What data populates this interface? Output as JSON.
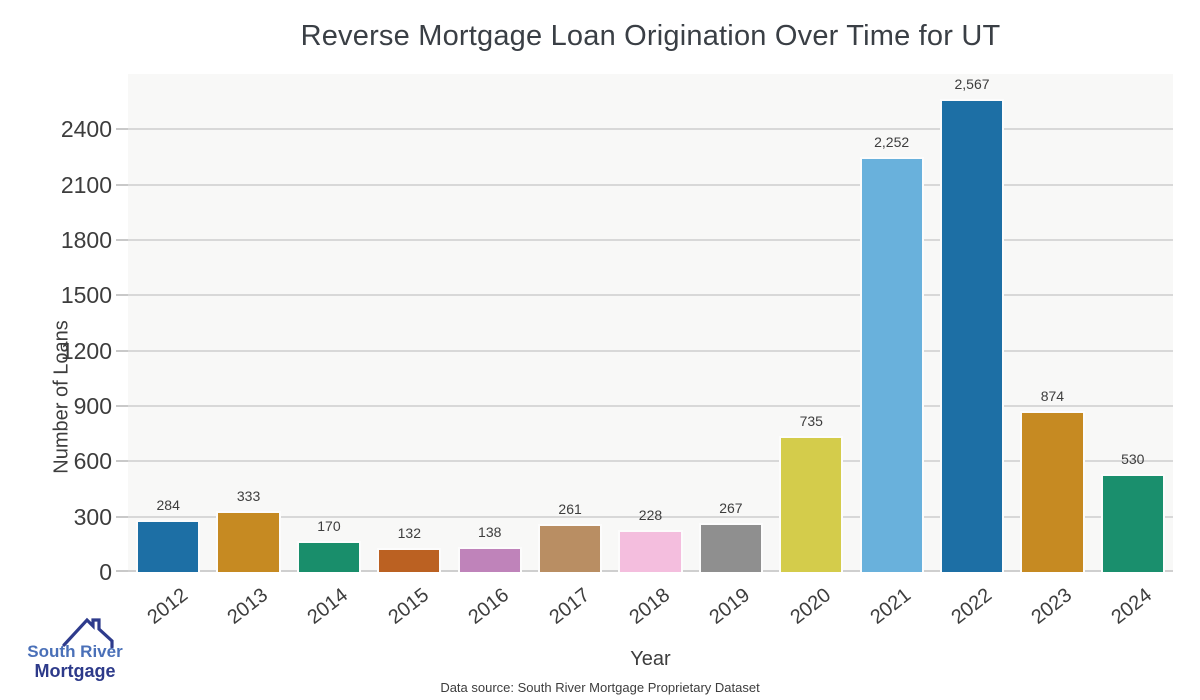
{
  "title": "Reverse Mortgage Loan Origination Over Time for UT",
  "footer": {
    "source": "Data source: South River Mortgage Proprietary Dataset"
  },
  "logo": {
    "line1": "South River",
    "line2": "Mortgage",
    "line1_color": "#4a70b8",
    "line2_color": "#2d3a8a",
    "roof_icon_color": "#2e3b8c"
  },
  "chart_data": {
    "type": "bar",
    "title": "Reverse Mortgage Loan Origination Over Time for UT",
    "xlabel": "Year",
    "ylabel": "Number of Loans",
    "categories": [
      "2012",
      "2013",
      "2014",
      "2015",
      "2016",
      "2017",
      "2018",
      "2019",
      "2020",
      "2021",
      "2022",
      "2023",
      "2024"
    ],
    "values": [
      284,
      333,
      170,
      132,
      138,
      261,
      228,
      267,
      735,
      2252,
      2567,
      874,
      530
    ],
    "value_labels": [
      "284",
      "333",
      "170",
      "132",
      "138",
      "261",
      "228",
      "267",
      "735",
      "2,252",
      "2,567",
      "874",
      "530"
    ],
    "bar_colors": [
      "#1d6fa5",
      "#c68a22",
      "#198e6b",
      "#bb6122",
      "#bf83ba",
      "#b98e63",
      "#f4bede",
      "#8f8f8f",
      "#d4cc4b",
      "#69b1dc",
      "#1d6fa5",
      "#c68a22",
      "#1a8f6d"
    ],
    "ylim": [
      0,
      2700
    ],
    "yticks": [
      0,
      300,
      600,
      900,
      1200,
      1500,
      1800,
      2100,
      2400
    ],
    "grid": true,
    "legend": "none",
    "plot_background": "#f8f8f7",
    "gridline_color": "#d8d8d8"
  }
}
